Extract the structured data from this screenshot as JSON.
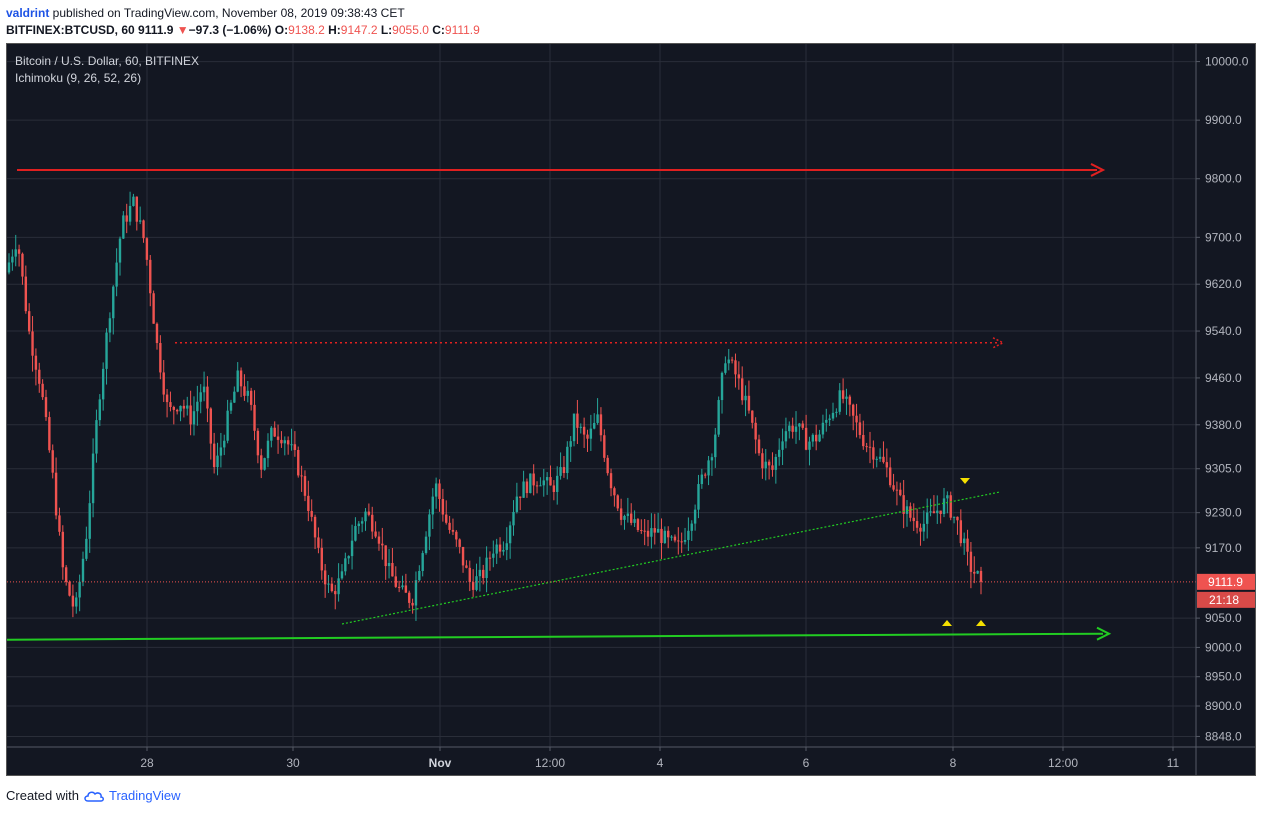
{
  "header": {
    "line1": {
      "user": "valdrint",
      "text": " published on TradingView.com, November 08, 2019 09:38:43 CET"
    },
    "line2": {
      "symbol": "BITFINEX:BTCUSD, 60",
      "last": "9111.9",
      "change_arrow": "▼",
      "change": "−97.3 (−1.06%)",
      "o_label": "O:",
      "o": "9138.2",
      "h_label": "H:",
      "h": "9147.2",
      "l_label": "L:",
      "l": "9055.0",
      "c_label": "C:",
      "c": "9111.9"
    }
  },
  "footer": {
    "created_with": "Created with",
    "brand": "TradingView",
    "logo_icon": "tradingview-cloud-icon"
  },
  "colors": {
    "background": "#131722",
    "grid": "#2a2e39",
    "up": "#26a69a",
    "down": "#ef5350",
    "resistance": "#e02020",
    "support": "#22cc22",
    "marker": "#f5e000",
    "text": "#b2b5be"
  },
  "chart_data": {
    "type": "candlestick",
    "title": "Bitcoin / U.S. Dollar, 60, BITFINEX",
    "indicator": "Ichimoku (9, 26, 52, 26)",
    "xlabel": "",
    "ylabel": "",
    "ylim": [
      8830,
      10030
    ],
    "x_ticks": [
      "28",
      "30",
      "Nov",
      "12:00",
      "4",
      "6",
      "8",
      "12:00",
      "11"
    ],
    "y_ticks": [
      "10000.0",
      "9900.0",
      "9800.0",
      "9700.0",
      "9620.0",
      "9540.0",
      "9460.0",
      "9380.0",
      "9305.0",
      "9230.0",
      "9170.0",
      "9111.9",
      "9050.0",
      "9000.0",
      "8950.0",
      "8900.0",
      "8848.0"
    ],
    "last_price": {
      "label": "9111.9",
      "value": 9111.9
    },
    "countdown": "21:18",
    "grid": true,
    "annotations": {
      "resistance_line": 9815,
      "dotted_resistance": 9520,
      "support_line": 9020,
      "ascending_trendline": {
        "from": 9040,
        "to": 9265
      },
      "markers": [
        "down-triangle",
        "up-triangle",
        "up-triangle"
      ]
    },
    "price_path": [
      9640,
      9700,
      9540,
      9450,
      9300,
      9120,
      9060,
      9200,
      9420,
      9580,
      9720,
      9760,
      9690,
      9520,
      9400,
      9420,
      9390,
      9450,
      9300,
      9380,
      9460,
      9420,
      9310,
      9370,
      9360,
      9320,
      9250,
      9150,
      9090,
      9120,
      9200,
      9230,
      9200,
      9130,
      9095,
      9080,
      9180,
      9280,
      9210,
      9170,
      9110,
      9120,
      9170,
      9180,
      9260,
      9280,
      9290,
      9270,
      9300,
      9390,
      9350,
      9390,
      9290,
      9230,
      9210,
      9190,
      9200,
      9180,
      9170,
      9220,
      9290,
      9350,
      9500,
      9460,
      9400,
      9320,
      9300,
      9370,
      9380,
      9350,
      9360,
      9400,
      9430,
      9390,
      9350,
      9330,
      9300,
      9250,
      9220,
      9210,
      9230,
      9250,
      9210,
      9140,
      9111.9
    ]
  }
}
